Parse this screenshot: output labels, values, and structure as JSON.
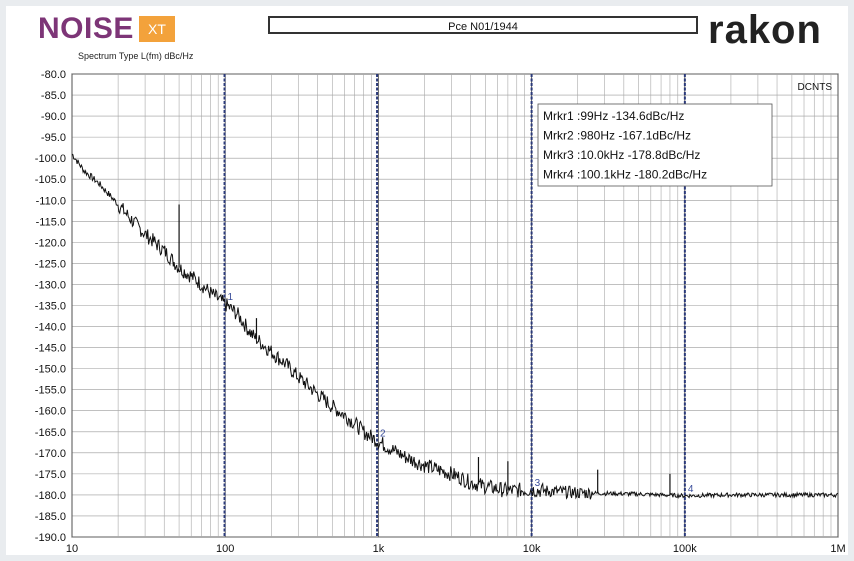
{
  "header": {
    "brand_noise": "NOISE",
    "brand_xt": "XT",
    "title": "Pce N01/1944",
    "brand_rakon": "rakon"
  },
  "chart_data": {
    "type": "line",
    "subtitle": "Spectrum Type  L(fm) dBc/Hz",
    "corner_label": "DCNTS",
    "xscale": "log",
    "xlim": [
      10,
      1000000
    ],
    "ylim": [
      -190,
      -80
    ],
    "yticks": [
      -80,
      -85,
      -90,
      -95,
      -100,
      -105,
      -110,
      -115,
      -120,
      -125,
      -130,
      -135,
      -140,
      -145,
      -150,
      -155,
      -160,
      -165,
      -170,
      -175,
      -180,
      -185,
      -190
    ],
    "ytick_labels": [
      "-80.0",
      "-85.0",
      "-90.0",
      "-95.0",
      "-100.0",
      "-105.0",
      "-110.0",
      "-115.0",
      "-120.0",
      "-125.0",
      "-130.0",
      "-135.0",
      "-140.0",
      "-145.0",
      "-150.0",
      "-155.0",
      "-160.0",
      "-165.0",
      "-170.0",
      "-175.0",
      "-180.0",
      "-185.0",
      "-190.0"
    ],
    "xticks": [
      10,
      100,
      1000,
      10000,
      100000,
      1000000
    ],
    "xtick_labels": [
      "10",
      "100",
      "1k",
      "10k",
      "100k",
      "1M"
    ],
    "grid": true,
    "series": [
      {
        "color": "#111111",
        "points": [
          [
            10,
            -99
          ],
          [
            12,
            -103
          ],
          [
            15,
            -106
          ],
          [
            20,
            -111
          ],
          [
            25,
            -115
          ],
          [
            30,
            -118
          ],
          [
            40,
            -122
          ],
          [
            50,
            -126
          ],
          [
            60,
            -128
          ],
          [
            70,
            -130
          ],
          [
            80,
            -132
          ],
          [
            99,
            -134.6
          ],
          [
            120,
            -137
          ],
          [
            150,
            -142
          ],
          [
            200,
            -146
          ],
          [
            250,
            -149
          ],
          [
            300,
            -152
          ],
          [
            400,
            -156
          ],
          [
            500,
            -159
          ],
          [
            600,
            -161
          ],
          [
            700,
            -163
          ],
          [
            800,
            -165
          ],
          [
            980,
            -167.1
          ],
          [
            1200,
            -169
          ],
          [
            1500,
            -171
          ],
          [
            2000,
            -173
          ],
          [
            3000,
            -175
          ],
          [
            4000,
            -177
          ],
          [
            5000,
            -178
          ],
          [
            7000,
            -179
          ],
          [
            10000,
            -178.8
          ],
          [
            20000,
            -179.5
          ],
          [
            50000,
            -179.8
          ],
          [
            100000,
            -180.2
          ],
          [
            200000,
            -180
          ],
          [
            500000,
            -180
          ],
          [
            1000000,
            -180
          ]
        ],
        "spikes": [
          [
            50,
            -111
          ],
          [
            160,
            -138
          ],
          [
            4500,
            -171
          ],
          [
            7000,
            -172
          ],
          [
            27000,
            -174
          ],
          [
            80000,
            -175
          ]
        ]
      }
    ],
    "markers": [
      {
        "label": "1",
        "x": 99,
        "y": -134.6
      },
      {
        "label": "2",
        "x": 980,
        "y": -167.1
      },
      {
        "label": "3",
        "x": 10000,
        "y": -178.8
      },
      {
        "label": "4",
        "x": 100100,
        "y": -180.2
      }
    ],
    "marker_lines_color": "#2b3a7a",
    "legend": [
      "Mrkr1 :99Hz  -134.6dBc/Hz",
      "Mrkr2 :980Hz  -167.1dBc/Hz",
      "Mrkr3 :10.0kHz  -178.8dBc/Hz",
      "Mrkr4 :100.1kHz  -180.2dBc/Hz"
    ]
  }
}
